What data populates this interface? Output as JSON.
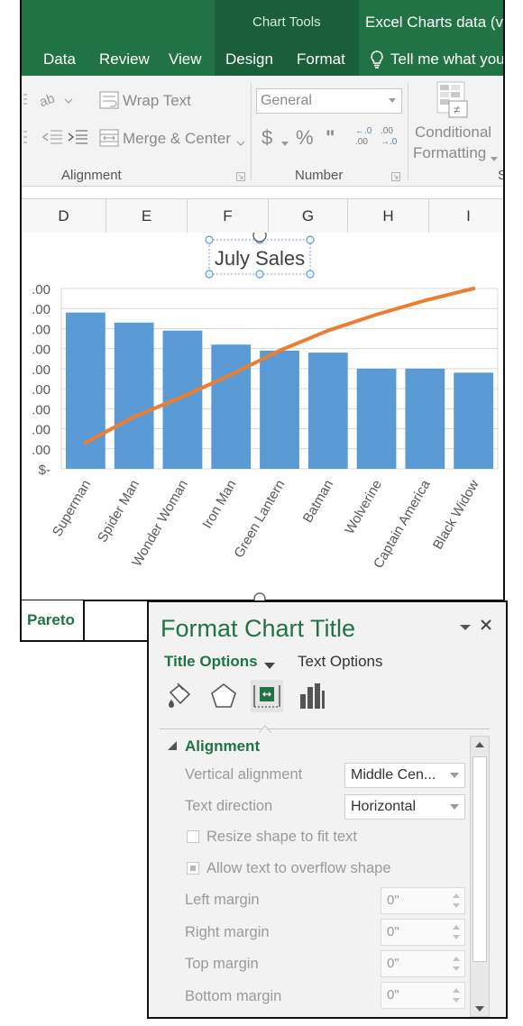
{
  "ribbon": {
    "context_tab": "Chart Tools",
    "window_title": "Excel Charts data (ver",
    "tabs": [
      "Data",
      "Review",
      "View",
      "Design",
      "Format"
    ],
    "tell_me": "Tell me what you",
    "wrap_text": "Wrap Text",
    "merge_center": "Merge & Center",
    "number_format": "General",
    "dollar": "$",
    "percent": "%",
    "comma": "\"",
    "dec_increase": "←.0 .00",
    "dec_decrease": ".00 →.0",
    "conditional_line1": "Conditional",
    "conditional_line2": "Formatting",
    "group_alignment": "Alignment",
    "group_number": "Number",
    "group_s": "S"
  },
  "columns": [
    "D",
    "E",
    "F",
    "G",
    "H",
    "I"
  ],
  "sheet_tab": "Pareto",
  "chart_data": {
    "type": "bar",
    "title": "July Sales",
    "categories": [
      "Superman",
      "Spider Man",
      "Wonder Woman",
      "Iron Man",
      "Green Lantern",
      "Batman",
      "Wolverine",
      "Captain America",
      "Black Widow"
    ],
    "y_tick_labels": [
      ".00",
      ".00",
      ".00",
      ".00",
      ".00",
      ".00",
      ".00",
      ".00",
      ".00",
      "$-"
    ],
    "series": [
      {
        "values": [
          7.8,
          7.3,
          6.9,
          6.2,
          5.9,
          5.8,
          5.0,
          5.0,
          4.8
        ],
        "color": "#5b9bd5"
      },
      {
        "values": [
          1.3,
          2.6,
          3.6,
          4.7,
          5.9,
          6.9,
          7.7,
          8.4,
          9.0
        ],
        "color": "#ed7d31"
      }
    ],
    "ylim": [
      0,
      9
    ],
    "grid": true
  },
  "pane": {
    "title": "Format Chart Title",
    "tab_title_options": "Title Options",
    "tab_text_options": "Text Options",
    "section": "Alignment",
    "vertical_alignment_label": "Vertical alignment",
    "vertical_alignment_value": "Middle Cen...",
    "text_direction_label": "Text direction",
    "text_direction_value": "Horizontal",
    "resize_label": "Resize shape to fit text",
    "overflow_label": "Allow text to overflow shape",
    "left_margin_label": "Left margin",
    "left_margin_value": "0\"",
    "right_margin_label": "Right margin",
    "right_margin_value": "0\"",
    "top_margin_label": "Top margin",
    "top_margin_value": "0\"",
    "bottom_margin_label": "Bottom margin",
    "bottom_margin_value": "0\""
  }
}
